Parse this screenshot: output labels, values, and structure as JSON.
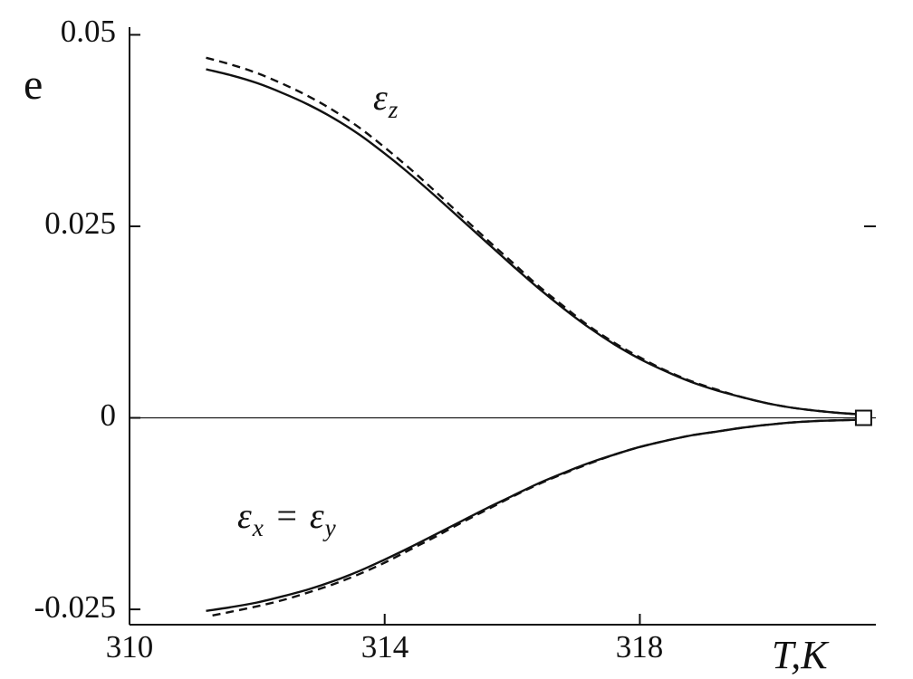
{
  "figure": {
    "y_axis_title": "e",
    "x_axis_title": "T,K"
  },
  "annotations": {
    "eps_z": {
      "base": "ε",
      "sub": "z"
    },
    "eps_xy": {
      "base1": "ε",
      "sub1": "x",
      "eq": " = ",
      "base2": "ε",
      "sub2": "y"
    }
  },
  "chart_data": {
    "type": "line",
    "title": "",
    "xlabel": "T,K",
    "ylabel": "e",
    "xlim": [
      310,
      321.7
    ],
    "ylim": [
      -0.027,
      0.051
    ],
    "grid": false,
    "legend_position": "none",
    "color": "#111111",
    "zero_line": true,
    "x_ticks": [
      {
        "label": "310",
        "value": 310
      },
      {
        "label": "314",
        "value": 314
      },
      {
        "label": "318",
        "value": 318
      }
    ],
    "y_ticks": [
      {
        "label": "0.05",
        "value": 0.05
      },
      {
        "label": "0.025",
        "value": 0.025
      },
      {
        "label": "0",
        "value": 0
      },
      {
        "label": "-0.025",
        "value": -0.025
      }
    ],
    "right_tick_values": [
      0.025
    ],
    "end_marker": {
      "x": 321.5,
      "y": 0
    },
    "series": [
      {
        "id": "epsilon-z-solid",
        "name": "ε_z (solid)",
        "style": "solid",
        "points": [
          [
            311.2,
            0.0455
          ],
          [
            311.6,
            0.0447
          ],
          [
            312.0,
            0.0437
          ],
          [
            312.4,
            0.0424
          ],
          [
            312.8,
            0.0409
          ],
          [
            313.2,
            0.0391
          ],
          [
            313.6,
            0.037
          ],
          [
            314.0,
            0.0345
          ],
          [
            314.4,
            0.0318
          ],
          [
            314.8,
            0.0289
          ],
          [
            315.2,
            0.0259
          ],
          [
            315.6,
            0.0229
          ],
          [
            316.0,
            0.0199
          ],
          [
            316.4,
            0.017
          ],
          [
            316.8,
            0.0143
          ],
          [
            317.2,
            0.0118
          ],
          [
            317.6,
            0.0096
          ],
          [
            318.0,
            0.0077
          ],
          [
            318.4,
            0.0061
          ],
          [
            318.8,
            0.0047
          ],
          [
            319.2,
            0.0036
          ],
          [
            319.6,
            0.0027
          ],
          [
            320.0,
            0.0019
          ],
          [
            320.4,
            0.0013
          ],
          [
            320.8,
            0.0009
          ],
          [
            321.2,
            0.0006
          ],
          [
            321.6,
            0.0004
          ]
        ]
      },
      {
        "id": "epsilon-z-dashed",
        "name": "ε_z (dashed)",
        "style": "dashed",
        "points": [
          [
            311.2,
            0.047
          ],
          [
            311.6,
            0.0461
          ],
          [
            312.0,
            0.045
          ],
          [
            312.4,
            0.0436
          ],
          [
            312.8,
            0.042
          ],
          [
            313.2,
            0.0401
          ],
          [
            313.6,
            0.0379
          ],
          [
            314.0,
            0.0353
          ],
          [
            314.4,
            0.0325
          ],
          [
            314.8,
            0.0295
          ],
          [
            315.2,
            0.0264
          ],
          [
            315.6,
            0.0233
          ],
          [
            316.0,
            0.0203
          ],
          [
            316.4,
            0.0173
          ],
          [
            316.8,
            0.0146
          ],
          [
            317.2,
            0.012
          ],
          [
            317.6,
            0.0098
          ],
          [
            318.0,
            0.0079
          ],
          [
            318.4,
            0.0062
          ],
          [
            318.8,
            0.0048
          ],
          [
            319.2,
            0.0037
          ],
          [
            319.6,
            0.0027
          ],
          [
            320.0,
            0.0019
          ],
          [
            320.4,
            0.0013
          ],
          [
            320.8,
            0.0009
          ],
          [
            321.2,
            0.0006
          ],
          [
            321.6,
            0.0004
          ]
        ]
      },
      {
        "id": "epsilon-x-solid",
        "name": "ε_x = ε_y (solid)",
        "style": "solid",
        "points": [
          [
            311.2,
            -0.0252
          ],
          [
            311.6,
            -0.0247
          ],
          [
            312.0,
            -0.0241
          ],
          [
            312.4,
            -0.0233
          ],
          [
            312.8,
            -0.0224
          ],
          [
            313.2,
            -0.0213
          ],
          [
            313.6,
            -0.02
          ],
          [
            314.0,
            -0.0185
          ],
          [
            314.4,
            -0.0169
          ],
          [
            314.8,
            -0.0152
          ],
          [
            315.2,
            -0.0135
          ],
          [
            315.6,
            -0.0118
          ],
          [
            316.0,
            -0.0102
          ],
          [
            316.4,
            -0.0086
          ],
          [
            316.8,
            -0.0072
          ],
          [
            317.2,
            -0.0059
          ],
          [
            317.6,
            -0.0048
          ],
          [
            318.0,
            -0.0038
          ],
          [
            318.4,
            -0.003
          ],
          [
            318.8,
            -0.0023
          ],
          [
            319.2,
            -0.0018
          ],
          [
            319.6,
            -0.0013
          ],
          [
            320.0,
            -0.0009
          ],
          [
            320.4,
            -0.0006
          ],
          [
            320.8,
            -0.0004
          ],
          [
            321.2,
            -0.0003
          ],
          [
            321.6,
            -0.0002
          ]
        ]
      },
      {
        "id": "epsilon-x-dashed",
        "name": "ε_x = ε_y (dashed)",
        "style": "dashed",
        "points": [
          [
            311.3,
            -0.0258
          ],
          [
            311.6,
            -0.0253
          ],
          [
            312.0,
            -0.0246
          ],
          [
            312.4,
            -0.0238
          ],
          [
            312.8,
            -0.0228
          ],
          [
            313.2,
            -0.0217
          ],
          [
            313.6,
            -0.0204
          ],
          [
            314.0,
            -0.0189
          ],
          [
            314.4,
            -0.0172
          ],
          [
            314.8,
            -0.0155
          ],
          [
            315.2,
            -0.0137
          ],
          [
            315.6,
            -0.012
          ],
          [
            316.0,
            -0.0103
          ],
          [
            316.4,
            -0.0087
          ],
          [
            316.8,
            -0.0073
          ],
          [
            317.2,
            -0.006
          ],
          [
            317.6,
            -0.0048
          ],
          [
            318.0,
            -0.0038
          ],
          [
            318.4,
            -0.003
          ],
          [
            318.8,
            -0.0023
          ],
          [
            319.2,
            -0.0018
          ],
          [
            319.6,
            -0.0013
          ],
          [
            320.0,
            -0.0009
          ],
          [
            320.4,
            -0.0006
          ],
          [
            320.8,
            -0.0004
          ],
          [
            321.2,
            -0.0003
          ],
          [
            321.6,
            -0.0002
          ]
        ]
      }
    ]
  }
}
